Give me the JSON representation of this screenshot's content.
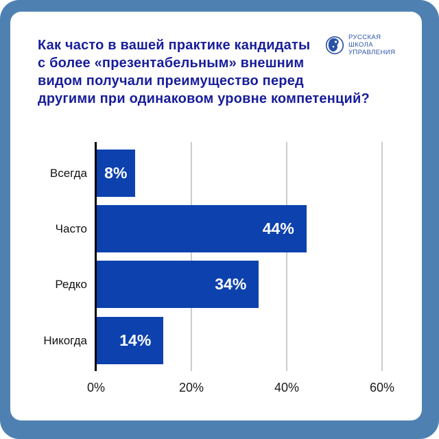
{
  "theme": {
    "frame_color": "#4e81b1",
    "card_color": "#ffffff",
    "title_color": "#171d9a",
    "logo_color": "#2b52a8"
  },
  "header": {
    "title": "Как часто в вашей практике кандидаты с более «презентабельным» внешним видом получали преимущество перед другими при одинаковом уровне компетенций?",
    "title_lines": [
      "Как часто в вашей практике кандидаты",
      "с более «презентабельным» внешним",
      "видом получали преимущество перед",
      "другими при одинаковом уровне компетенций?"
    ],
    "logo": {
      "icon": "russian-school-of-management-logo",
      "lines": [
        "РУССКАЯ",
        "ШКОЛА",
        "УПРАВЛЕНИЯ"
      ]
    }
  },
  "chart_data": {
    "type": "bar",
    "orientation": "horizontal",
    "title": "Как часто в вашей практике кандидаты с более «презентабельным» внешним видом получали преимущество перед другими при одинаковом уровне компетенций?",
    "categories": [
      "Всегда",
      "Часто",
      "Редко",
      "Никогда"
    ],
    "values": [
      8,
      44,
      34,
      14
    ],
    "value_labels": [
      "8%",
      "44%",
      "34%",
      "14%"
    ],
    "x_ticks": [
      "0%",
      "20%",
      "40%",
      "60%"
    ],
    "x_tick_values": [
      0,
      20,
      40,
      60
    ],
    "xlim": [
      0,
      60
    ],
    "grid": true,
    "legend": false,
    "bar_color": "#0c41ae",
    "value_label_color": "#ffffff",
    "gridline_color": "#cccccc",
    "axis_color": "#000000"
  }
}
